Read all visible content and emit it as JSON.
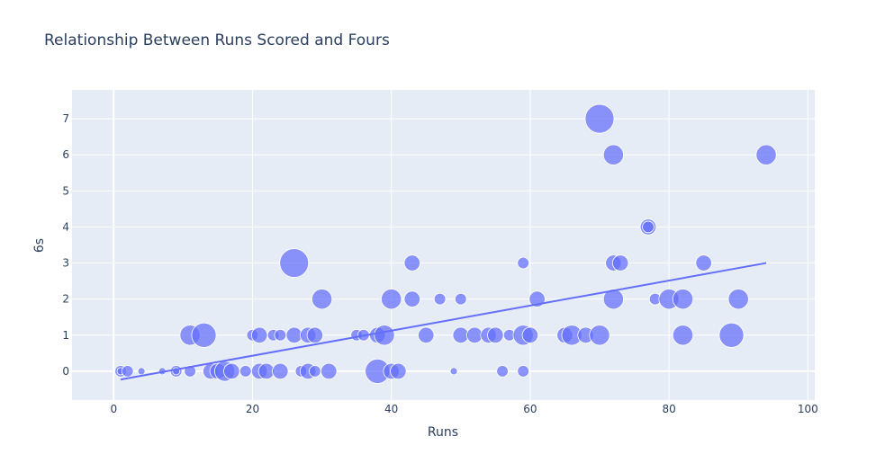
{
  "chart_data": {
    "type": "scatter",
    "title": "Relationship Between Runs Scored and Fours",
    "xlabel": "Runs",
    "ylabel": "6s",
    "xlim": [
      -6,
      101
    ],
    "ylim": [
      -0.8,
      7.8
    ],
    "x_ticks": [
      0,
      20,
      40,
      60,
      80,
      100
    ],
    "y_ticks": [
      0,
      1,
      2,
      3,
      4,
      5,
      6,
      7
    ],
    "grid": true,
    "bubble_size_note": "marker size varies per point",
    "colors": {
      "plot_bg": "#e5ecf6",
      "grid": "#ffffff",
      "marker": "#636efa",
      "trendline": "#636efa",
      "text": "#2a3f5f"
    },
    "trendline": {
      "x": [
        1,
        94
      ],
      "y": [
        -0.23,
        3.0
      ]
    },
    "points": [
      {
        "x": 1,
        "y": 0,
        "s": 2
      },
      {
        "x": 1,
        "y": 0,
        "s": 1
      },
      {
        "x": 2,
        "y": 0,
        "s": 2
      },
      {
        "x": 4,
        "y": 0,
        "s": 1
      },
      {
        "x": 7,
        "y": 0,
        "s": 1
      },
      {
        "x": 9,
        "y": 0,
        "s": 2
      },
      {
        "x": 9,
        "y": 0,
        "s": 1
      },
      {
        "x": 11,
        "y": 0,
        "s": 2
      },
      {
        "x": 11,
        "y": 1,
        "s": 4
      },
      {
        "x": 13,
        "y": 1,
        "s": 5
      },
      {
        "x": 14,
        "y": 0,
        "s": 3
      },
      {
        "x": 15,
        "y": 0,
        "s": 3
      },
      {
        "x": 16,
        "y": 0,
        "s": 4
      },
      {
        "x": 17,
        "y": 0,
        "s": 3
      },
      {
        "x": 19,
        "y": 0,
        "s": 2
      },
      {
        "x": 20,
        "y": 1,
        "s": 2
      },
      {
        "x": 21,
        "y": 1,
        "s": 3
      },
      {
        "x": 21,
        "y": 0,
        "s": 3
      },
      {
        "x": 22,
        "y": 0,
        "s": 3
      },
      {
        "x": 23,
        "y": 1,
        "s": 2
      },
      {
        "x": 24,
        "y": 1,
        "s": 2
      },
      {
        "x": 24,
        "y": 0,
        "s": 3
      },
      {
        "x": 26,
        "y": 1,
        "s": 3
      },
      {
        "x": 26,
        "y": 3,
        "s": 6
      },
      {
        "x": 27,
        "y": 0,
        "s": 2
      },
      {
        "x": 28,
        "y": 1,
        "s": 3
      },
      {
        "x": 28,
        "y": 0,
        "s": 3
      },
      {
        "x": 29,
        "y": 1,
        "s": 3
      },
      {
        "x": 29,
        "y": 0,
        "s": 2
      },
      {
        "x": 30,
        "y": 2,
        "s": 4
      },
      {
        "x": 31,
        "y": 0,
        "s": 3
      },
      {
        "x": 35,
        "y": 1,
        "s": 2
      },
      {
        "x": 36,
        "y": 1,
        "s": 2
      },
      {
        "x": 38,
        "y": 0,
        "s": 5
      },
      {
        "x": 38,
        "y": 1,
        "s": 3
      },
      {
        "x": 39,
        "y": 1,
        "s": 4
      },
      {
        "x": 40,
        "y": 2,
        "s": 4
      },
      {
        "x": 40,
        "y": 0,
        "s": 3
      },
      {
        "x": 41,
        "y": 0,
        "s": 3
      },
      {
        "x": 43,
        "y": 2,
        "s": 3
      },
      {
        "x": 43,
        "y": 3,
        "s": 3
      },
      {
        "x": 45,
        "y": 1,
        "s": 3
      },
      {
        "x": 47,
        "y": 2,
        "s": 2
      },
      {
        "x": 49,
        "y": 0,
        "s": 1
      },
      {
        "x": 50,
        "y": 2,
        "s": 2
      },
      {
        "x": 50,
        "y": 1,
        "s": 3
      },
      {
        "x": 52,
        "y": 1,
        "s": 3
      },
      {
        "x": 54,
        "y": 1,
        "s": 3
      },
      {
        "x": 55,
        "y": 1,
        "s": 3
      },
      {
        "x": 56,
        "y": 0,
        "s": 2
      },
      {
        "x": 57,
        "y": 1,
        "s": 2
      },
      {
        "x": 59,
        "y": 3,
        "s": 2
      },
      {
        "x": 59,
        "y": 1,
        "s": 4
      },
      {
        "x": 59,
        "y": 0,
        "s": 2
      },
      {
        "x": 60,
        "y": 1,
        "s": 3
      },
      {
        "x": 61,
        "y": 2,
        "s": 3
      },
      {
        "x": 65,
        "y": 1,
        "s": 3
      },
      {
        "x": 66,
        "y": 1,
        "s": 4
      },
      {
        "x": 68,
        "y": 1,
        "s": 3
      },
      {
        "x": 70,
        "y": 1,
        "s": 4
      },
      {
        "x": 70,
        "y": 7,
        "s": 6
      },
      {
        "x": 72,
        "y": 6,
        "s": 4
      },
      {
        "x": 72,
        "y": 2,
        "s": 4
      },
      {
        "x": 72,
        "y": 3,
        "s": 3
      },
      {
        "x": 73,
        "y": 3,
        "s": 3
      },
      {
        "x": 77,
        "y": 4,
        "s": 3
      },
      {
        "x": 77,
        "y": 4,
        "s": 2
      },
      {
        "x": 78,
        "y": 2,
        "s": 2
      },
      {
        "x": 80,
        "y": 2,
        "s": 4
      },
      {
        "x": 82,
        "y": 2,
        "s": 4
      },
      {
        "x": 82,
        "y": 1,
        "s": 4
      },
      {
        "x": 85,
        "y": 3,
        "s": 3
      },
      {
        "x": 89,
        "y": 1,
        "s": 5
      },
      {
        "x": 90,
        "y": 2,
        "s": 4
      },
      {
        "x": 94,
        "y": 6,
        "s": 4
      }
    ]
  }
}
